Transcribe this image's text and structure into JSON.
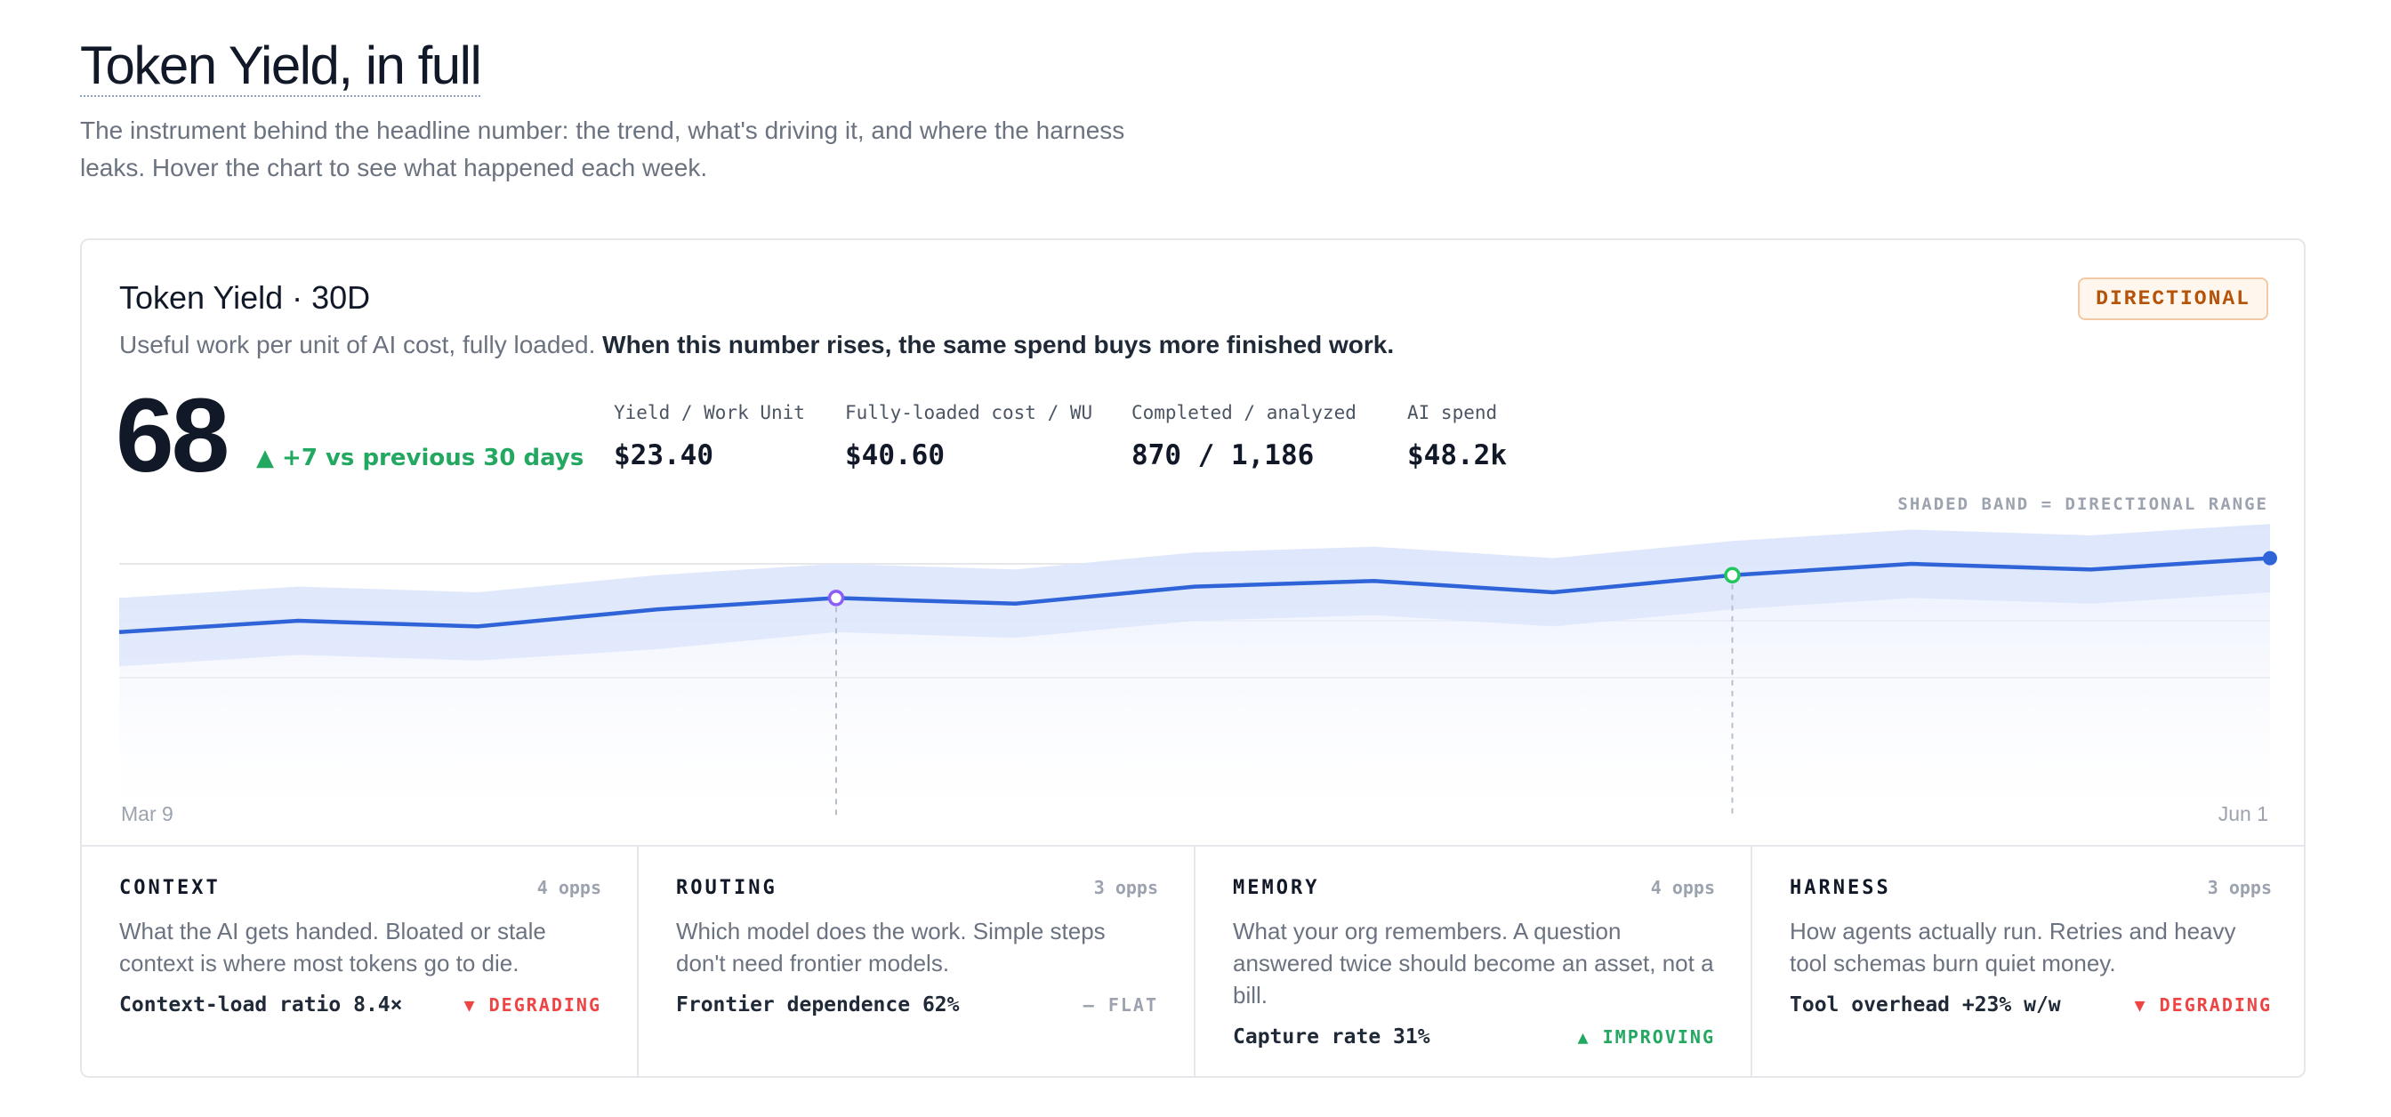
{
  "page": {
    "title": "Token Yield, in full",
    "subtitle": "The instrument behind the headline number: the trend, what's driving it, and where the harness leaks. Hover the chart to see what happened each week."
  },
  "card": {
    "title": "Token Yield · 30D",
    "badge": "DIRECTIONAL",
    "subtitle_plain": "Useful work per unit of AI cost, fully loaded.",
    "subtitle_bold": "When this number rises, the same spend buys more finished work.",
    "score": "68",
    "delta": "▲ +7 vs previous 30 days",
    "metrics": [
      {
        "label": "Yield / Work Unit",
        "value": "$23.40"
      },
      {
        "label": "Fully-loaded cost / WU",
        "value": "$40.60"
      },
      {
        "label": "Completed / analyzed",
        "value": "870 / 1,186"
      },
      {
        "label": "AI spend",
        "value": "$48.2k"
      }
    ],
    "band_note": "SHADED BAND = DIRECTIONAL RANGE",
    "x_start": "Mar 9",
    "x_end": "Jun 1"
  },
  "colors": {
    "line": "#2f64d8",
    "band": "#dbe4fb",
    "marker_purple": "#8b5cf6",
    "marker_green": "#22c55e",
    "up": "#22a860",
    "down": "#ef4444"
  },
  "chart_data": {
    "type": "line",
    "x": [
      "Mar 9",
      "",
      "",
      "",
      "",
      "",
      "",
      "",
      "",
      "",
      "",
      "",
      "Jun 1"
    ],
    "series": [
      {
        "values": [
          58,
          60,
          59,
          62,
          64,
          63,
          66,
          67,
          65,
          68,
          70,
          69,
          71
        ]
      }
    ],
    "band_low": [
      52,
      54,
      53,
      55,
      58,
      57,
      60,
      61,
      59,
      62,
      64,
      63,
      65
    ],
    "band_high": [
      64,
      66,
      65,
      68,
      70,
      69,
      72,
      73,
      71,
      74,
      76,
      75,
      77
    ],
    "ylim": [
      30,
      80
    ],
    "markers": [
      {
        "index": 4,
        "color": "purple"
      },
      {
        "index": 9,
        "color": "green"
      }
    ],
    "grid": true
  },
  "categories": [
    {
      "name": "CONTEXT",
      "opps": "4 opps",
      "desc": "What the AI gets handed. Bloated or stale context is where most tokens go to die.",
      "metric": "Context-load ratio 8.4×",
      "trend": "▼ DEGRADING",
      "trend_kind": "down"
    },
    {
      "name": "ROUTING",
      "opps": "3 opps",
      "desc": "Which model does the work. Simple steps don't need frontier models.",
      "metric": "Frontier dependence 62%",
      "trend": "– FLAT",
      "trend_kind": "flat"
    },
    {
      "name": "MEMORY",
      "opps": "4 opps",
      "desc": "What your org remembers. A question answered twice should become an asset, not a bill.",
      "metric": "Capture rate 31%",
      "trend": "▲ IMPROVING",
      "trend_kind": "up"
    },
    {
      "name": "HARNESS",
      "opps": "3 opps",
      "desc": "How agents actually run. Retries and heavy tool schemas burn quiet money.",
      "metric": "Tool overhead +23% w/w",
      "trend": "▼ DEGRADING",
      "trend_kind": "down"
    }
  ]
}
